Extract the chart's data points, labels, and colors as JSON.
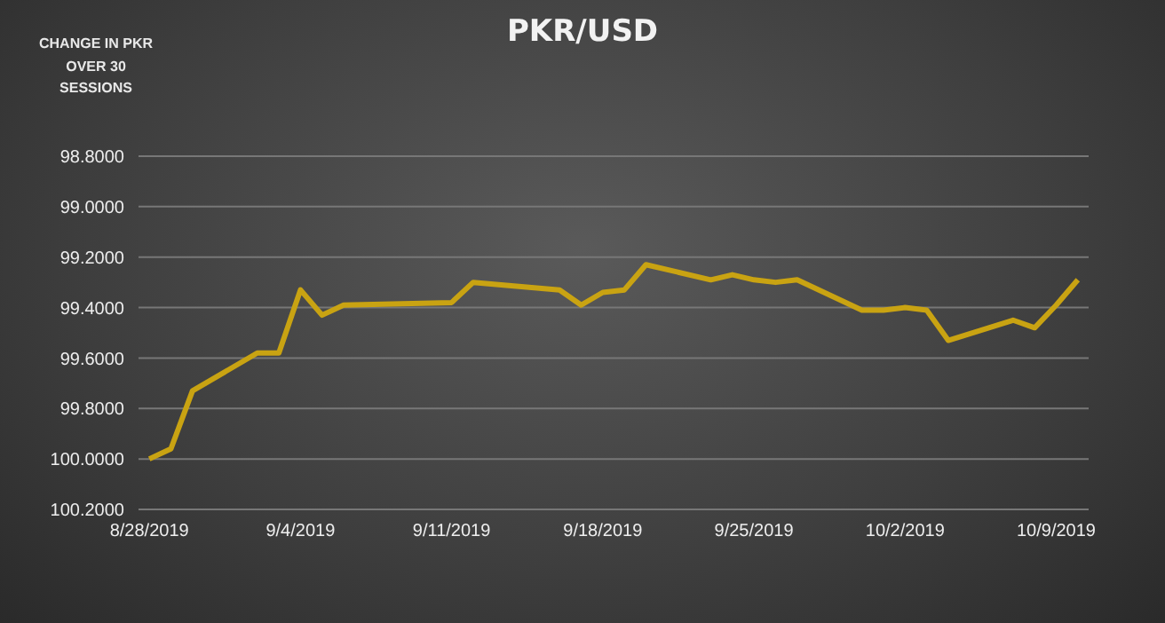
{
  "chart_data": {
    "type": "line",
    "title": "PKR/USD",
    "annotations": [
      "CHANGE IN PKR OVER 30 SESSIONS"
    ],
    "x": [
      "2019-08-28",
      "2019-08-29",
      "2019-08-30",
      "2019-09-02",
      "2019-09-03",
      "2019-09-04",
      "2019-09-05",
      "2019-09-06",
      "2019-09-11",
      "2019-09-12",
      "2019-09-16",
      "2019-09-17",
      "2019-09-18",
      "2019-09-19",
      "2019-09-20",
      "2019-09-23",
      "2019-09-24",
      "2019-09-25",
      "2019-09-26",
      "2019-09-27",
      "2019-09-30",
      "2019-10-01",
      "2019-10-02",
      "2019-10-03",
      "2019-10-04",
      "2019-10-07",
      "2019-10-08",
      "2019-10-09",
      "2019-10-10"
    ],
    "series": [
      {
        "color": "#c9a312",
        "values": [
          100.0,
          99.96,
          99.73,
          99.58,
          99.58,
          99.33,
          99.43,
          99.39,
          99.38,
          99.3,
          99.33,
          99.39,
          99.34,
          99.33,
          99.23,
          99.29,
          99.27,
          99.29,
          99.3,
          99.29,
          99.41,
          99.41,
          99.4,
          99.41,
          99.53,
          99.45,
          99.48,
          99.39,
          99.29
        ]
      }
    ],
    "xlim": [
      "2019-08-27T12:00",
      "2019-10-10T12:00"
    ],
    "xticks": [
      {
        "value": "2019-08-28",
        "label": "8/28/2019"
      },
      {
        "value": "2019-09-04",
        "label": "9/4/2019"
      },
      {
        "value": "2019-09-11",
        "label": "9/11/2019"
      },
      {
        "value": "2019-09-18",
        "label": "9/18/2019"
      },
      {
        "value": "2019-09-25",
        "label": "9/25/2019"
      },
      {
        "value": "2019-10-02",
        "label": "10/2/2019"
      },
      {
        "value": "2019-10-09",
        "label": "10/9/2019"
      }
    ],
    "ylim": [
      100.2,
      98.8
    ],
    "yticks": [
      {
        "value": 98.8,
        "label": "98.8000"
      },
      {
        "value": 99.0,
        "label": "99.0000"
      },
      {
        "value": 99.2,
        "label": "99.2000"
      },
      {
        "value": 99.4,
        "label": "99.4000"
      },
      {
        "value": 99.6,
        "label": "99.6000"
      },
      {
        "value": 99.8,
        "label": "99.8000"
      },
      {
        "value": 100.0,
        "label": "100.0000"
      },
      {
        "value": 100.2,
        "label": "100.2000"
      }
    ],
    "grid": "y",
    "legend": false,
    "marker": "none",
    "line_style": "solid"
  }
}
